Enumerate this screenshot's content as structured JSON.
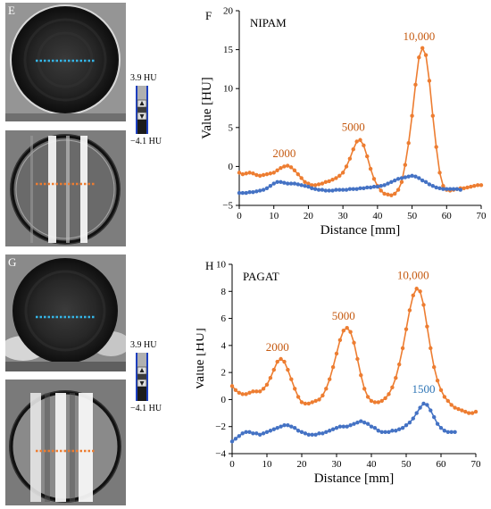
{
  "panels": {
    "e_letter": "E",
    "f_letter": "F",
    "g_letter": "G",
    "h_letter": "H"
  },
  "colorbar": {
    "top_label": "3.9 HU",
    "bottom_label": "−4.1 HU"
  },
  "colors": {
    "orange": "#ED7D31",
    "blue": "#4472C4",
    "orange_text": "#C55A11",
    "blue_text": "#2E75B6"
  },
  "chart_data": [
    {
      "type": "line",
      "title": "NIPAM",
      "xlabel": "Distance [mm]",
      "ylabel": "Value [HU]",
      "xlim": [
        0,
        70
      ],
      "ylim": [
        -5,
        20
      ],
      "xticks": [
        0,
        10,
        20,
        30,
        40,
        50,
        60,
        70
      ],
      "yticks": [
        -5,
        0,
        5,
        10,
        15,
        20
      ],
      "annotations": [
        {
          "text": "2000",
          "x": 13,
          "y": 1.2,
          "color": "orange"
        },
        {
          "text": "5000",
          "x": 33,
          "y": 4.6,
          "color": "orange"
        },
        {
          "text": "10,000",
          "x": 52,
          "y": 16.2,
          "color": "orange"
        }
      ],
      "series": [
        {
          "color": "orange",
          "x": [
            0,
            1,
            2,
            3,
            4,
            5,
            6,
            7,
            8,
            9,
            10,
            11,
            12,
            13,
            14,
            15,
            16,
            17,
            18,
            19,
            20,
            21,
            22,
            23,
            24,
            25,
            26,
            27,
            28,
            29,
            30,
            31,
            32,
            33,
            34,
            35,
            36,
            37,
            38,
            39,
            40,
            41,
            42,
            43,
            44,
            45,
            46,
            47,
            48,
            49,
            50,
            51,
            52,
            53,
            54,
            55,
            56,
            57,
            58,
            59,
            60,
            61,
            62,
            63,
            64,
            65,
            66,
            67,
            68,
            69,
            70
          ],
          "values": [
            -0.8,
            -1.0,
            -0.9,
            -0.8,
            -0.9,
            -1.1,
            -1.2,
            -1.1,
            -1.0,
            -0.9,
            -0.8,
            -0.5,
            -0.2,
            0.0,
            0.1,
            -0.1,
            -0.5,
            -1.0,
            -1.5,
            -2.0,
            -2.2,
            -2.4,
            -2.4,
            -2.3,
            -2.2,
            -2.0,
            -1.9,
            -1.7,
            -1.5,
            -1.2,
            -0.8,
            0.0,
            1.0,
            2.2,
            3.2,
            3.4,
            2.7,
            1.3,
            -0.3,
            -1.6,
            -2.5,
            -3.1,
            -3.5,
            -3.6,
            -3.7,
            -3.5,
            -3.0,
            -2.0,
            0.2,
            3.0,
            6.5,
            10.5,
            14.0,
            15.2,
            14.3,
            11.0,
            6.5,
            2.5,
            -0.8,
            -2.5,
            -3.0,
            -3.1,
            -3.0,
            -2.9,
            -2.8,
            -2.8,
            -2.7,
            -2.6,
            -2.5,
            -2.4,
            -2.4
          ]
        },
        {
          "color": "blue",
          "x": [
            0,
            1,
            2,
            3,
            4,
            5,
            6,
            7,
            8,
            9,
            10,
            11,
            12,
            13,
            14,
            15,
            16,
            17,
            18,
            19,
            20,
            21,
            22,
            23,
            24,
            25,
            26,
            27,
            28,
            29,
            30,
            31,
            32,
            33,
            34,
            35,
            36,
            37,
            38,
            39,
            40,
            41,
            42,
            43,
            44,
            45,
            46,
            47,
            48,
            49,
            50,
            51,
            52,
            53,
            54,
            55,
            56,
            57,
            58,
            59,
            60,
            61,
            62,
            63,
            64
          ],
          "values": [
            -3.4,
            -3.4,
            -3.4,
            -3.3,
            -3.3,
            -3.2,
            -3.1,
            -3.0,
            -2.8,
            -2.5,
            -2.2,
            -2.0,
            -2.0,
            -2.1,
            -2.2,
            -2.2,
            -2.2,
            -2.3,
            -2.4,
            -2.5,
            -2.6,
            -2.8,
            -2.9,
            -3.0,
            -3.0,
            -3.1,
            -3.1,
            -3.1,
            -3.0,
            -3.0,
            -3.0,
            -3.0,
            -2.9,
            -2.9,
            -2.9,
            -2.8,
            -2.8,
            -2.7,
            -2.7,
            -2.6,
            -2.6,
            -2.5,
            -2.4,
            -2.2,
            -2.0,
            -1.8,
            -1.6,
            -1.5,
            -1.4,
            -1.3,
            -1.2,
            -1.3,
            -1.5,
            -1.8,
            -2.0,
            -2.3,
            -2.5,
            -2.7,
            -2.8,
            -2.9,
            -2.9,
            -2.9,
            -2.9,
            -2.9,
            -3.0
          ]
        }
      ]
    },
    {
      "type": "line",
      "title": "PAGAT",
      "xlabel": "Distance [mm]",
      "ylabel": "Value [HU]",
      "xlim": [
        0,
        70
      ],
      "ylim": [
        -4,
        10
      ],
      "xticks": [
        0,
        10,
        20,
        30,
        40,
        50,
        60,
        70
      ],
      "yticks": [
        -4,
        -2,
        0,
        2,
        4,
        6,
        8,
        10
      ],
      "annotations": [
        {
          "text": "2000",
          "x": 13,
          "y": 3.6,
          "color": "orange"
        },
        {
          "text": "5000",
          "x": 32,
          "y": 5.9,
          "color": "orange"
        },
        {
          "text": "10,000",
          "x": 52,
          "y": 8.9,
          "color": "orange"
        },
        {
          "text": "1500",
          "x": 55,
          "y": 0.5,
          "color": "blue"
        }
      ],
      "series": [
        {
          "color": "orange",
          "x": [
            0,
            1,
            2,
            3,
            4,
            5,
            6,
            7,
            8,
            9,
            10,
            11,
            12,
            13,
            14,
            15,
            16,
            17,
            18,
            19,
            20,
            21,
            22,
            23,
            24,
            25,
            26,
            27,
            28,
            29,
            30,
            31,
            32,
            33,
            34,
            35,
            36,
            37,
            38,
            39,
            40,
            41,
            42,
            43,
            44,
            45,
            46,
            47,
            48,
            49,
            50,
            51,
            52,
            53,
            54,
            55,
            56,
            57,
            58,
            59,
            60,
            61,
            62,
            63,
            64,
            65,
            66,
            67,
            68,
            69,
            70
          ],
          "values": [
            1.0,
            0.7,
            0.5,
            0.4,
            0.4,
            0.5,
            0.6,
            0.6,
            0.6,
            0.8,
            1.1,
            1.6,
            2.2,
            2.8,
            3.0,
            2.8,
            2.2,
            1.5,
            0.8,
            0.2,
            -0.2,
            -0.3,
            -0.3,
            -0.2,
            -0.1,
            0.0,
            0.3,
            0.8,
            1.5,
            2.4,
            3.4,
            4.4,
            5.1,
            5.3,
            5.0,
            4.2,
            3.0,
            1.8,
            0.8,
            0.2,
            -0.1,
            -0.2,
            -0.2,
            -0.1,
            0.1,
            0.4,
            0.9,
            1.6,
            2.6,
            3.8,
            5.2,
            6.6,
            7.7,
            8.2,
            8.0,
            7.0,
            5.4,
            3.8,
            2.4,
            1.4,
            0.7,
            0.2,
            -0.1,
            -0.4,
            -0.6,
            -0.7,
            -0.8,
            -0.9,
            -1.0,
            -1.0,
            -0.9
          ]
        },
        {
          "color": "blue",
          "x": [
            0,
            1,
            2,
            3,
            4,
            5,
            6,
            7,
            8,
            9,
            10,
            11,
            12,
            13,
            14,
            15,
            16,
            17,
            18,
            19,
            20,
            21,
            22,
            23,
            24,
            25,
            26,
            27,
            28,
            29,
            30,
            31,
            32,
            33,
            34,
            35,
            36,
            37,
            38,
            39,
            40,
            41,
            42,
            43,
            44,
            45,
            46,
            47,
            48,
            49,
            50,
            51,
            52,
            53,
            54,
            55,
            56,
            57,
            58,
            59,
            60,
            61,
            62,
            63,
            64
          ],
          "values": [
            -3.1,
            -2.9,
            -2.7,
            -2.5,
            -2.4,
            -2.4,
            -2.5,
            -2.5,
            -2.6,
            -2.5,
            -2.4,
            -2.3,
            -2.2,
            -2.1,
            -2.0,
            -1.9,
            -1.9,
            -2.0,
            -2.1,
            -2.3,
            -2.4,
            -2.5,
            -2.6,
            -2.6,
            -2.6,
            -2.5,
            -2.5,
            -2.4,
            -2.3,
            -2.2,
            -2.1,
            -2.0,
            -2.0,
            -2.0,
            -1.9,
            -1.8,
            -1.7,
            -1.6,
            -1.7,
            -1.8,
            -2.0,
            -2.1,
            -2.3,
            -2.4,
            -2.4,
            -2.4,
            -2.3,
            -2.3,
            -2.2,
            -2.1,
            -1.9,
            -1.7,
            -1.4,
            -1.0,
            -0.6,
            -0.3,
            -0.4,
            -0.8,
            -1.3,
            -1.8,
            -2.1,
            -2.3,
            -2.4,
            -2.4,
            -2.4
          ]
        }
      ]
    }
  ]
}
